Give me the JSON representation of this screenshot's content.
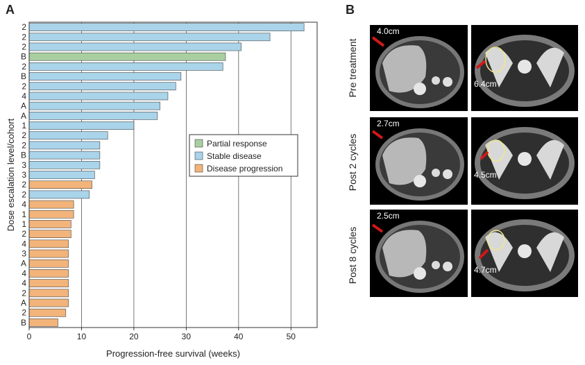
{
  "panel_a": {
    "letter": "A"
  },
  "panel_b": {
    "letter": "B"
  },
  "chart_data": {
    "type": "bar",
    "orientation": "horizontal",
    "xlabel": "Progression-free survival (weeks)",
    "ylabel": "Dose escalation level/cohort",
    "xlim": [
      0,
      55
    ],
    "xticks": [
      0,
      10,
      20,
      30,
      40,
      50
    ],
    "grid": "vertical lines",
    "legend_position": "right-middle",
    "legend": [
      {
        "key": "PR",
        "label": "Partial response",
        "color": "#a9cfa0"
      },
      {
        "key": "SD",
        "label": "Stable disease",
        "color": "#a9d4ea"
      },
      {
        "key": "PD",
        "label": "Disease progression",
        "color": "#f2b47a"
      }
    ],
    "bars": [
      {
        "label": "2",
        "value": 52.5,
        "response": "SD"
      },
      {
        "label": "2",
        "value": 46.0,
        "response": "SD"
      },
      {
        "label": "2",
        "value": 40.5,
        "response": "SD"
      },
      {
        "label": "B",
        "value": 37.5,
        "response": "PR"
      },
      {
        "label": "2",
        "value": 37.0,
        "response": "SD"
      },
      {
        "label": "B",
        "value": 29.0,
        "response": "SD"
      },
      {
        "label": "2",
        "value": 28.0,
        "response": "SD"
      },
      {
        "label": "4",
        "value": 26.5,
        "response": "SD"
      },
      {
        "label": "A",
        "value": 25.0,
        "response": "SD"
      },
      {
        "label": "A",
        "value": 24.5,
        "response": "SD"
      },
      {
        "label": "1",
        "value": 20.0,
        "response": "SD"
      },
      {
        "label": "2",
        "value": 15.0,
        "response": "SD"
      },
      {
        "label": "2",
        "value": 13.5,
        "response": "SD"
      },
      {
        "label": "B",
        "value": 13.5,
        "response": "SD"
      },
      {
        "label": "3",
        "value": 13.5,
        "response": "SD"
      },
      {
        "label": "3",
        "value": 12.5,
        "response": "SD"
      },
      {
        "label": "2",
        "value": 12.0,
        "response": "PD"
      },
      {
        "label": "2",
        "value": 11.5,
        "response": "SD"
      },
      {
        "label": "4",
        "value": 8.5,
        "response": "PD"
      },
      {
        "label": "1",
        "value": 8.5,
        "response": "PD"
      },
      {
        "label": "1",
        "value": 8.0,
        "response": "PD"
      },
      {
        "label": "2",
        "value": 8.0,
        "response": "PD"
      },
      {
        "label": "4",
        "value": 7.5,
        "response": "PD"
      },
      {
        "label": "3",
        "value": 7.5,
        "response": "PD"
      },
      {
        "label": "A",
        "value": 7.5,
        "response": "PD"
      },
      {
        "label": "4",
        "value": 7.5,
        "response": "PD"
      },
      {
        "label": "4",
        "value": 7.5,
        "response": "PD"
      },
      {
        "label": "2",
        "value": 7.5,
        "response": "PD"
      },
      {
        "label": "A",
        "value": 7.5,
        "response": "PD"
      },
      {
        "label": "2",
        "value": 7.0,
        "response": "PD"
      },
      {
        "label": "B",
        "value": 5.5,
        "response": "PD"
      }
    ]
  },
  "scans": {
    "rows": [
      {
        "label": "Pre treatment",
        "liver_measure": "4.0cm",
        "pelvis_measure": "6.4cm"
      },
      {
        "label": "Post 2 cycles",
        "liver_measure": "2.7cm",
        "pelvis_measure": "4.5cm"
      },
      {
        "label": "Post 8 cycles",
        "liver_measure": "2.5cm",
        "pelvis_measure": "4.7cm"
      }
    ]
  }
}
